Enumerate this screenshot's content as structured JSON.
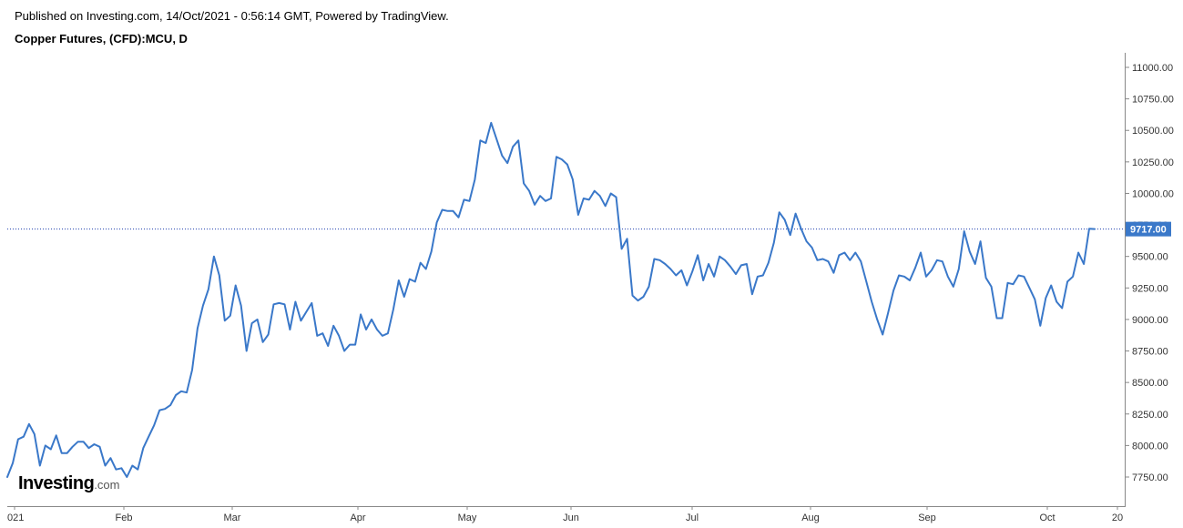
{
  "header": {
    "published_line": "Published on Investing.com, 14/Oct/2021 - 0:56:14 GMT, Powered by TradingView.",
    "instrument_title": "Copper Futures, (CFD):MCU, D"
  },
  "logo": {
    "main": "Investing",
    "suffix": ".com"
  },
  "colors": {
    "line": "#3a78c9",
    "price_label_bg": "#3a78c9",
    "price_label_text": "#ffffff",
    "price_line": "#1f3fae",
    "axis": "#888888",
    "tick_text": "#333333"
  },
  "chart_data": {
    "type": "line",
    "title": "Copper Futures, (CFD):MCU, D",
    "xlabel": "",
    "ylabel": "",
    "grid": false,
    "y_axis_position": "right",
    "ylim": [
      7575,
      11125
    ],
    "y_ticks": [
      7750,
      8000,
      8250,
      8500,
      8750,
      9000,
      9250,
      9500,
      9750,
      10000,
      10250,
      10500,
      10750,
      11000
    ],
    "y_tick_labels": [
      "7750.00",
      "8000.00",
      "8250.00",
      "8500.00",
      "8750.00",
      "9000.00",
      "9250.00",
      "9500.00",
      "9750.00",
      "10000.00",
      "10250.00",
      "10500.00",
      "10750.00",
      "11000.00"
    ],
    "x_tick_labels": [
      "021",
      "Feb",
      "Mar",
      "Apr",
      "May",
      "Jun",
      "Jul",
      "Aug",
      "Sep",
      "Oct",
      "20"
    ],
    "last_price": 9717,
    "last_price_label": "9717.00",
    "series": [
      {
        "values": [
          7750,
          7860,
          8050,
          8070,
          8170,
          8090,
          7840,
          8000,
          7970,
          8080,
          7940,
          7940,
          7990,
          8030,
          8030,
          7980,
          8010,
          7990,
          7840,
          7900,
          7810,
          7820,
          7750,
          7840,
          7810,
          7980,
          8070,
          8160,
          8280,
          8290,
          8320,
          8400,
          8430,
          8420,
          8600,
          8930,
          9110,
          9240,
          9500,
          9350,
          8990,
          9030,
          9270,
          9110,
          8750,
          8970,
          9000,
          8820,
          8880,
          9120,
          9130,
          9120,
          8920,
          9140,
          8990,
          9060,
          9130,
          8870,
          8890,
          8790,
          8950,
          8870,
          8750,
          8800,
          8800,
          9040,
          8920,
          9000,
          8920,
          8870,
          8890,
          9080,
          9310,
          9180,
          9320,
          9300,
          9450,
          9400,
          9540,
          9770,
          9870,
          9860,
          9860,
          9810,
          9950,
          9940,
          10110,
          10420,
          10400,
          10560,
          10430,
          10300,
          10240,
          10370,
          10420,
          10080,
          10020,
          9910,
          9980,
          9940,
          9960,
          10290,
          10270,
          10230,
          10110,
          9830,
          9960,
          9950,
          10020,
          9980,
          9900,
          10000,
          9970,
          9560,
          9640,
          9190,
          9150,
          9180,
          9260,
          9480,
          9470,
          9440,
          9400,
          9350,
          9390,
          9270,
          9380,
          9510,
          9310,
          9440,
          9340,
          9500,
          9470,
          9420,
          9360,
          9430,
          9440,
          9200,
          9340,
          9350,
          9450,
          9610,
          9850,
          9790,
          9670,
          9840,
          9720,
          9620,
          9570,
          9470,
          9480,
          9460,
          9370,
          9510,
          9530,
          9470,
          9530,
          9460,
          9300,
          9140,
          9000,
          8880,
          9050,
          9230,
          9350,
          9340,
          9310,
          9410,
          9530,
          9340,
          9390,
          9470,
          9460,
          9340,
          9260,
          9400,
          9700,
          9540,
          9440,
          9620,
          9330,
          9260,
          9010,
          9010,
          9290,
          9280,
          9350,
          9340,
          9250,
          9160,
          8950,
          9170,
          9270,
          9140,
          9090,
          9300,
          9340,
          9530,
          9440,
          9720,
          9717
        ]
      }
    ]
  }
}
